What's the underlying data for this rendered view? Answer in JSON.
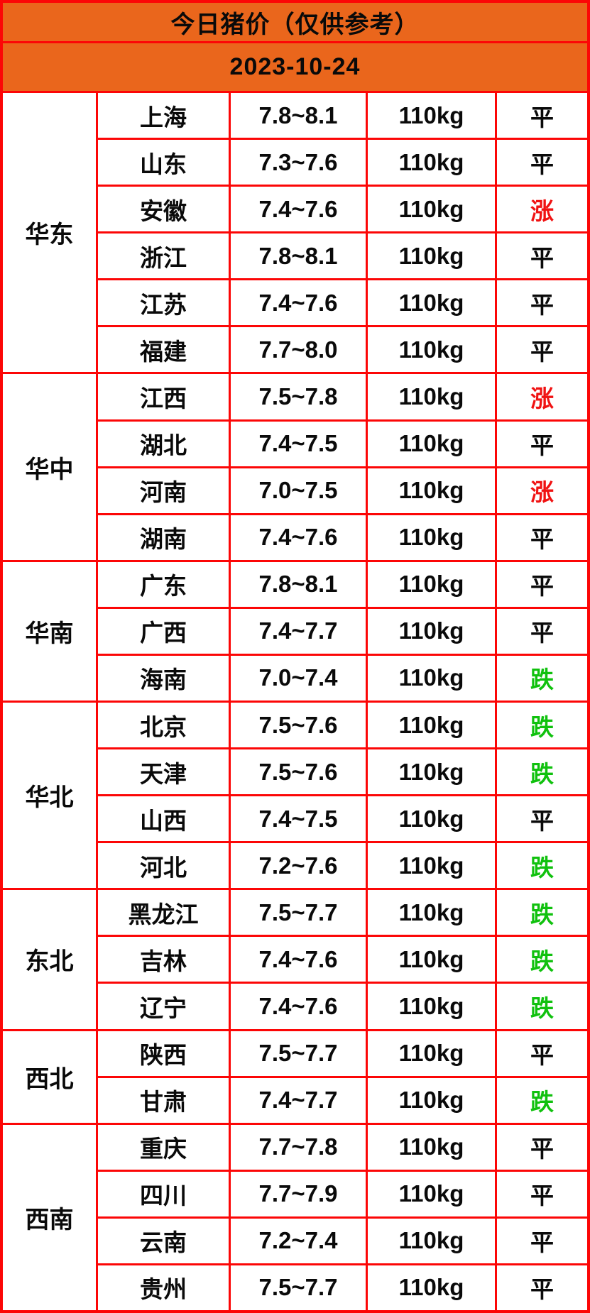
{
  "header": {
    "title": "今日猪价（仅供参考）",
    "date": "2023-10-24"
  },
  "colors": {
    "header_bg": "#ea661c",
    "border_red": "#fc0606",
    "up_red": "#f01212",
    "down_green": "#10c10e",
    "text_black": "#0a0a0a"
  },
  "chart_data": {
    "type": "table",
    "title": "今日猪价（仅供参考）",
    "date": "2023-10-24",
    "columns": [
      "region",
      "province",
      "price_range",
      "weight",
      "status"
    ],
    "status_legend": {
      "up": "涨",
      "flat": "平",
      "down": "跌"
    },
    "regions": [
      {
        "name": "华东",
        "rows": [
          {
            "province": "上海",
            "price": "7.8~8.1",
            "weight": "110kg",
            "status": "平",
            "trend": "flat"
          },
          {
            "province": "山东",
            "price": "7.3~7.6",
            "weight": "110kg",
            "status": "平",
            "trend": "flat"
          },
          {
            "province": "安徽",
            "price": "7.4~7.6",
            "weight": "110kg",
            "status": "涨",
            "trend": "up"
          },
          {
            "province": "浙江",
            "price": "7.8~8.1",
            "weight": "110kg",
            "status": "平",
            "trend": "flat"
          },
          {
            "province": "江苏",
            "price": "7.4~7.6",
            "weight": "110kg",
            "status": "平",
            "trend": "flat"
          },
          {
            "province": "福建",
            "price": "7.7~8.0",
            "weight": "110kg",
            "status": "平",
            "trend": "flat"
          }
        ]
      },
      {
        "name": "华中",
        "rows": [
          {
            "province": "江西",
            "price": "7.5~7.8",
            "weight": "110kg",
            "status": "涨",
            "trend": "up"
          },
          {
            "province": "湖北",
            "price": "7.4~7.5",
            "weight": "110kg",
            "status": "平",
            "trend": "flat"
          },
          {
            "province": "河南",
            "price": "7.0~7.5",
            "weight": "110kg",
            "status": "涨",
            "trend": "up"
          },
          {
            "province": "湖南",
            "price": "7.4~7.6",
            "weight": "110kg",
            "status": "平",
            "trend": "flat"
          }
        ]
      },
      {
        "name": "华南",
        "rows": [
          {
            "province": "广东",
            "price": "7.8~8.1",
            "weight": "110kg",
            "status": "平",
            "trend": "flat"
          },
          {
            "province": "广西",
            "price": "7.4~7.7",
            "weight": "110kg",
            "status": "平",
            "trend": "flat"
          },
          {
            "province": "海南",
            "price": "7.0~7.4",
            "weight": "110kg",
            "status": "跌",
            "trend": "down"
          }
        ]
      },
      {
        "name": "华北",
        "rows": [
          {
            "province": "北京",
            "price": "7.5~7.6",
            "weight": "110kg",
            "status": "跌",
            "trend": "down"
          },
          {
            "province": "天津",
            "price": "7.5~7.6",
            "weight": "110kg",
            "status": "跌",
            "trend": "down"
          },
          {
            "province": "山西",
            "price": "7.4~7.5",
            "weight": "110kg",
            "status": "平",
            "trend": "flat"
          },
          {
            "province": "河北",
            "price": "7.2~7.6",
            "weight": "110kg",
            "status": "跌",
            "trend": "down"
          }
        ]
      },
      {
        "name": "东北",
        "rows": [
          {
            "province": "黑龙江",
            "price": "7.5~7.7",
            "weight": "110kg",
            "status": "跌",
            "trend": "down"
          },
          {
            "province": "吉林",
            "price": "7.4~7.6",
            "weight": "110kg",
            "status": "跌",
            "trend": "down"
          },
          {
            "province": "辽宁",
            "price": "7.4~7.6",
            "weight": "110kg",
            "status": "跌",
            "trend": "down"
          }
        ]
      },
      {
        "name": "西北",
        "rows": [
          {
            "province": "陕西",
            "price": "7.5~7.7",
            "weight": "110kg",
            "status": "平",
            "trend": "flat"
          },
          {
            "province": "甘肃",
            "price": "7.4~7.7",
            "weight": "110kg",
            "status": "跌",
            "trend": "down"
          }
        ]
      },
      {
        "name": "西南",
        "rows": [
          {
            "province": "重庆",
            "price": "7.7~7.8",
            "weight": "110kg",
            "status": "平",
            "trend": "flat"
          },
          {
            "province": "四川",
            "price": "7.7~7.9",
            "weight": "110kg",
            "status": "平",
            "trend": "flat"
          },
          {
            "province": "云南",
            "price": "7.2~7.4",
            "weight": "110kg",
            "status": "平",
            "trend": "flat"
          },
          {
            "province": "贵州",
            "price": "7.5~7.7",
            "weight": "110kg",
            "status": "平",
            "trend": "flat"
          }
        ]
      }
    ]
  }
}
